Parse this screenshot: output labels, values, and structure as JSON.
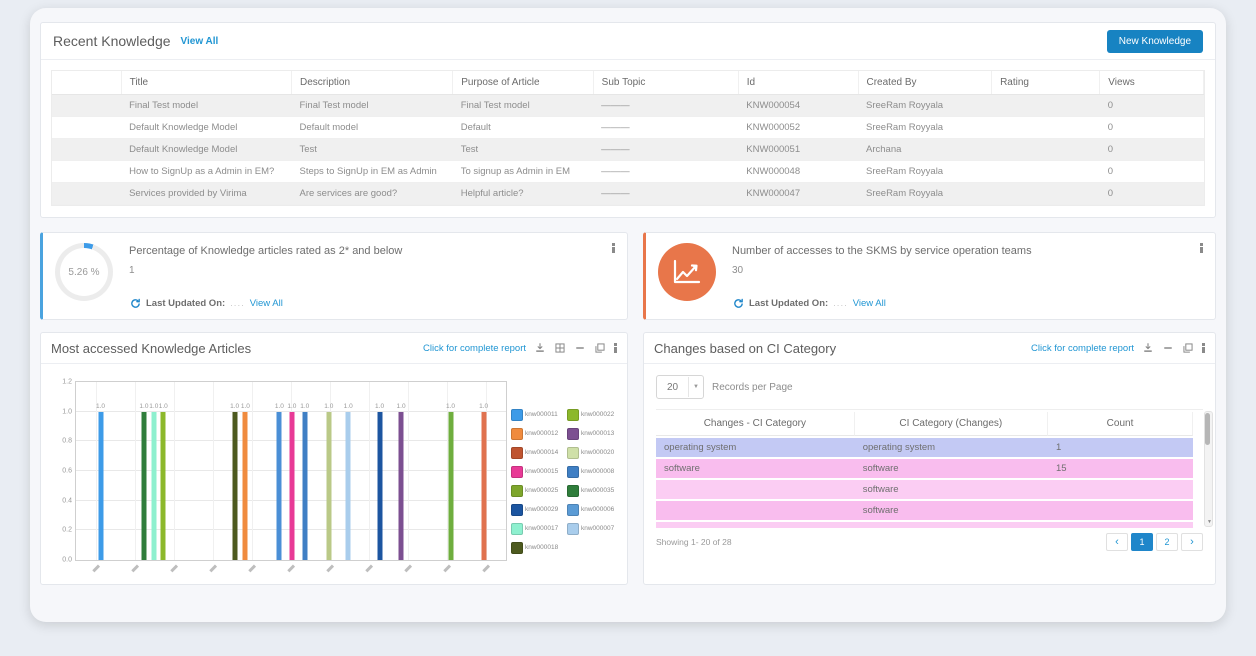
{
  "recent_knowledge": {
    "title": "Recent Knowledge",
    "view_all": "View All",
    "new_knowledge_button": "New Knowledge",
    "columns": [
      "",
      "Title",
      "Description",
      "Purpose of Article",
      "Sub Topic",
      "Id",
      "Created By",
      "Rating",
      "Views"
    ],
    "rows": [
      {
        "title": "Final Test model",
        "description": "Final Test model",
        "purpose": "Final Test model",
        "sub_topic": "———",
        "id": "KNW000054",
        "created_by": "SreeRam Royyala",
        "rating": "",
        "views": "0"
      },
      {
        "title": "Default Knowledge Model",
        "description": "Default model",
        "purpose": "Default",
        "sub_topic": "———",
        "id": "KNW000052",
        "created_by": "SreeRam Royyala",
        "rating": "",
        "views": "0"
      },
      {
        "title": "Default Knowledge Model",
        "description": "Test",
        "purpose": "Test",
        "sub_topic": "———",
        "id": "KNW000051",
        "created_by": "Archana",
        "rating": "",
        "views": "0"
      },
      {
        "title": "How to SignUp as a Admin in EM?",
        "description": "Steps to SignUp in EM as Admin",
        "purpose": "To signup as Admin in EM",
        "sub_topic": "———",
        "id": "KNW000048",
        "created_by": "SreeRam Royyala",
        "rating": "",
        "views": "0"
      },
      {
        "title": "Services provided by Virima",
        "description": "Are services are good?",
        "purpose": "Helpful article?",
        "sub_topic": "———",
        "id": "KNW000047",
        "created_by": "SreeRam Royyala",
        "rating": "",
        "views": "0"
      }
    ]
  },
  "metric_cards": {
    "left": {
      "gauge_value": "5.26 %",
      "title": "Percentage of Knowledge articles rated as 2* and below",
      "value": "1",
      "last_updated_label": "Last Updated On:",
      "dots": "....",
      "view_all": "View All",
      "accent_color": "#4aa3df"
    },
    "right": {
      "title": "Number of accesses to the SKMS by service operation teams",
      "value": "30",
      "last_updated_label": "Last Updated On:",
      "dots": "....",
      "view_all": "View All",
      "accent_color": "#e8764a",
      "icon_color": "#e8764a"
    }
  },
  "most_accessed": {
    "title": "Most accessed Knowledge Articles",
    "report_link": "Click for complete report",
    "chart_data": {
      "type": "bar",
      "title": "Most accessed Knowledge Articles",
      "xlabel": "",
      "ylabel": "",
      "ylim": [
        0,
        1.2
      ],
      "yticks": [
        0.0,
        0.2,
        0.4,
        0.6,
        0.8,
        1.0,
        1.2
      ],
      "grid": true,
      "legend_position": "right",
      "x_tick_count": 11,
      "bars": [
        {
          "series": "knw000011",
          "value": 1.0,
          "label": "1.0",
          "color": "#3d9be8",
          "x_pct": 5.7
        },
        {
          "series": "knw000035",
          "value": 1.0,
          "label": "1.0",
          "color": "#2f7d3b",
          "x_pct": 15.8
        },
        {
          "series": "knw000017",
          "value": 1.0,
          "label": "1.0",
          "color": "#8ef0cf",
          "x_pct": 18.1
        },
        {
          "series": "knw000022",
          "value": 1.0,
          "label": "1.0",
          "color": "#8cb82b",
          "x_pct": 20.3
        },
        {
          "series": "knw000018",
          "value": 1.0,
          "label": "1.0",
          "color": "#4d5a1f",
          "x_pct": 36.9
        },
        {
          "series": "knw000012",
          "value": 1.0,
          "label": "1.0",
          "color": "#f08b3e",
          "x_pct": 39.4
        },
        {
          "series": "knw000006",
          "value": 1.0,
          "label": "1.0",
          "color": "#4a8fd6",
          "x_pct": 47.3
        },
        {
          "series": "knw000015",
          "value": 1.0,
          "label": "1.0",
          "color": "#e83a96",
          "x_pct": 50.2
        },
        {
          "series": "knw000008",
          "value": 1.0,
          "label": "1.0",
          "color": "#3f7fc4",
          "x_pct": 53.2
        },
        {
          "series": "knw000020",
          "value": 1.0,
          "label": "1.0",
          "color": "#bac987",
          "x_pct": 58.8
        },
        {
          "series": "knw000007",
          "value": 1.0,
          "label": "1.0",
          "color": "#a9cdec",
          "x_pct": 63.3
        },
        {
          "series": "knw000029",
          "value": 1.0,
          "label": "1.0",
          "color": "#1c55a0",
          "x_pct": 70.6
        },
        {
          "series": "knw000013",
          "value": 1.0,
          "label": "1.0",
          "color": "#7c4f91",
          "x_pct": 75.6
        },
        {
          "series": "knw000025",
          "value": 1.0,
          "label": "1.0",
          "color": "#6fae3e",
          "x_pct": 87.1
        },
        {
          "series": "knw000014",
          "value": 1.0,
          "label": "1.0",
          "color": "#e0724f",
          "x_pct": 94.8
        }
      ],
      "legend": [
        {
          "label": "knw000011",
          "color": "#3d9be8"
        },
        {
          "label": "knw000012",
          "color": "#f08b3e"
        },
        {
          "label": "knw000014",
          "color": "#bf5430"
        },
        {
          "label": "knw000015",
          "color": "#e83a96"
        },
        {
          "label": "knw000025",
          "color": "#7ea62c"
        },
        {
          "label": "knw000029",
          "color": "#1c55a0"
        },
        {
          "label": "knw000017",
          "color": "#8ef0cf"
        },
        {
          "label": "knw000018",
          "color": "#4d5a1f"
        },
        {
          "label": "knw000022",
          "color": "#8cb82b"
        },
        {
          "label": "knw000013",
          "color": "#7c4f91"
        },
        {
          "label": "knw000020",
          "color": "#cfe0a8"
        },
        {
          "label": "knw000008",
          "color": "#3f7fc4"
        },
        {
          "label": "knw000035",
          "color": "#2f7d3b"
        },
        {
          "label": "knw000006",
          "color": "#5b9bd5"
        },
        {
          "label": "knw000007",
          "color": "#a9cdec"
        }
      ]
    }
  },
  "ci_changes": {
    "title": "Changes based on CI Category",
    "report_link": "Click for complete report",
    "records_per_page_value": "20",
    "records_per_page_label": "Records per Page",
    "columns": [
      "Changes - CI Category",
      "CI Category (Changes)",
      "Count"
    ],
    "rows": [
      {
        "a": "operating system",
        "b": "operating system",
        "c": "1",
        "tone": "lavender"
      },
      {
        "a": "software",
        "b": "software",
        "c": "15",
        "tone": "pink"
      },
      {
        "a": "",
        "b": "software",
        "c": "",
        "tone": "pink-light"
      },
      {
        "a": "",
        "b": "software",
        "c": "",
        "tone": "pink"
      },
      {
        "a": "",
        "b": "",
        "c": "",
        "tone": "pink-light"
      }
    ],
    "showing": "Showing 1- 20 of 28",
    "pagination": {
      "pages": [
        "1",
        "2"
      ],
      "active": "1"
    }
  },
  "colors": {
    "link_blue": "#2196d3",
    "button_blue": "#1783c2",
    "active_page_blue": "#1f86ca",
    "row_lavender": "#c3c9f4",
    "row_pink": "#f9bdee",
    "gauge_arc_blue": "#3d9be8"
  }
}
